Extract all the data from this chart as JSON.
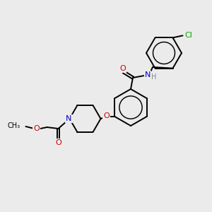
{
  "bg_color": "#ebebeb",
  "atom_colors": {
    "C": "#000000",
    "N": "#0000cc",
    "O": "#cc0000",
    "Cl": "#00aa00",
    "H": "#888888"
  },
  "bond_color": "#000000",
  "bond_width": 1.4,
  "figsize": [
    3.0,
    3.0
  ],
  "dpi": 100
}
